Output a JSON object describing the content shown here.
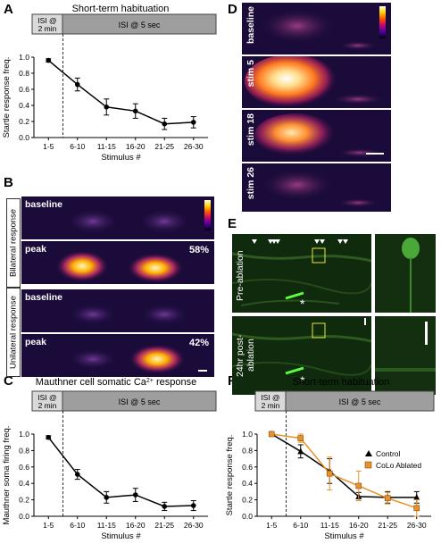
{
  "panels": {
    "A": {
      "letter": "A",
      "chart_data": {
        "type": "line",
        "title": "Short-term habituation",
        "ylabel": "Startle response freq.",
        "xlabel": "Stimulus #",
        "categories": [
          "1-5",
          "6-10",
          "11-15",
          "16-20",
          "21-25",
          "26-30"
        ],
        "series": [
          {
            "values": [
              0.96,
              0.66,
              0.38,
              0.33,
              0.17,
              0.19
            ],
            "errors": [
              0.02,
              0.08,
              0.1,
              0.09,
              0.07,
              0.07
            ]
          }
        ],
        "ylim": [
          0.0,
          1.0
        ],
        "yticks": [
          "0.0",
          "0.2",
          "0.4",
          "0.6",
          "0.8",
          "1.0"
        ],
        "isi_short": "ISI @\n2 min",
        "isi_long": "ISI @ 5 sec"
      }
    },
    "B": {
      "letter": "B",
      "group_bilateral": "Bilateral response",
      "group_unilateral": "Unilateral response",
      "rows": [
        {
          "label": "baseline",
          "pct": ""
        },
        {
          "label": "peak",
          "pct": "58%"
        },
        {
          "label": "baseline",
          "pct": ""
        },
        {
          "label": "peak",
          "pct": "42%"
        }
      ]
    },
    "C": {
      "letter": "C",
      "chart_data": {
        "type": "line",
        "title": "Mauthner cell somatic Ca",
        "title_sup": "2+",
        "title_end": " response",
        "ylabel": "Mauthner soma firing freq.",
        "xlabel": "Stimulus #",
        "categories": [
          "1-5",
          "6-10",
          "11-15",
          "16-20",
          "21-25",
          "26-30"
        ],
        "series": [
          {
            "values": [
              0.96,
              0.51,
              0.23,
              0.26,
              0.12,
              0.13
            ],
            "errors": [
              0.02,
              0.06,
              0.07,
              0.08,
              0.05,
              0.06
            ]
          }
        ],
        "ylim": [
          0.0,
          1.0
        ],
        "yticks": [
          "0.0",
          "0.2",
          "0.4",
          "0.6",
          "0.8",
          "1.0"
        ],
        "isi_short": "ISI @\n2 min",
        "isi_long": "ISI @ 5 sec"
      }
    },
    "D": {
      "letter": "D",
      "rows": [
        "baseline",
        "stim 5",
        "stim 18",
        "stim 26"
      ]
    },
    "E": {
      "letter": "E",
      "rows": [
        "Pre-ablation",
        "24hr post-ablation"
      ],
      "asterisk": "*"
    },
    "F": {
      "letter": "F",
      "chart_data": {
        "type": "line",
        "title": "Short-term habituation",
        "ylabel": "Startle response freq.",
        "xlabel": "Stimulus #",
        "categories": [
          "1-5",
          "6-10",
          "11-15",
          "16-20",
          "21-25",
          "26-30"
        ],
        "series": [
          {
            "name": "Control",
            "color": "#000000",
            "values": [
              1.0,
              0.79,
              0.55,
              0.24,
              0.23,
              0.23
            ],
            "errors": [
              0.02,
              0.08,
              0.15,
              0.05,
              0.07,
              0.07
            ]
          },
          {
            "name": "CoLo Ablated",
            "color": "#e8922a",
            "values": [
              1.0,
              0.95,
              0.52,
              0.37,
              0.22,
              0.1
            ],
            "errors": [
              0.02,
              0.05,
              0.2,
              0.18,
              0.07,
              0.1
            ]
          }
        ],
        "ylim": [
          0.0,
          1.0
        ],
        "yticks": [
          "0.0",
          "0.2",
          "0.4",
          "0.6",
          "0.8",
          "1.0"
        ],
        "isi_short": "ISI @\n2 min",
        "isi_long": "ISI @ 5 sec"
      }
    }
  }
}
